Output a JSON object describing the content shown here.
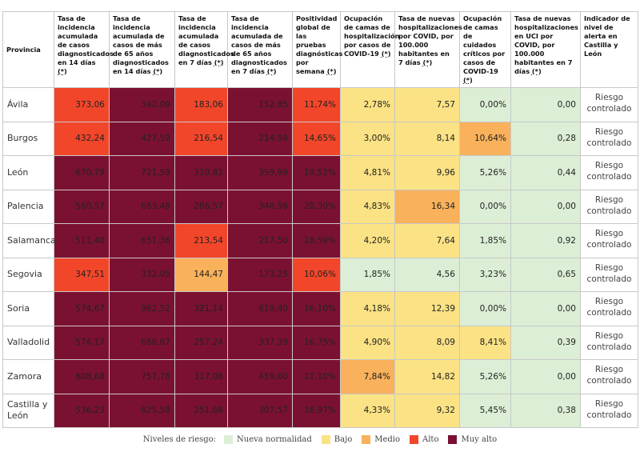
{
  "headers": [
    {
      "text": "Provincia",
      "asterisk": ""
    },
    {
      "text": "Tasa de incidencia acumulada de casos diagnosticados en 14 días ",
      "asterisk": "(*)"
    },
    {
      "text": "Tasa de incidencia acumulada de casos de más de 65 años diagnosticados en 14 días ",
      "asterisk": "(*)"
    },
    {
      "text": "Tasa de incidencia acumulada de casos diagnosticados en 7 días ",
      "asterisk": "(*)"
    },
    {
      "text": "Tasa de incidencia acumulada de casos de más de 65 años diagnosticados en 7 días ",
      "asterisk": "(*)"
    },
    {
      "text": "Positividad global de las pruebas diagnósticas por semana ",
      "asterisk": "(*)"
    },
    {
      "text": "Ocupación de camas de hospitalización por casos de COVID-19 ",
      "asterisk": "(*)"
    },
    {
      "text": "Tasa de nuevas hospitalizaciones por COVID, por 100.000 habitantes en 7 días ",
      "asterisk": "(*)"
    },
    {
      "text": "Ocupación de camas de cuidados críticos por casos de COVID-19 ",
      "asterisk": "(*)"
    },
    {
      "text": "Tasa de nuevas hospitalizaciones en UCI por COVID, por 100.000 habitantes en 7 días ",
      "asterisk": "(*)"
    },
    {
      "text": "Indicador de nivel de alerta en Castilla y León",
      "asterisk": ""
    }
  ],
  "rows": [
    {
      "provincia": "Ávila",
      "alerta": "Riesgo controlado",
      "cells": [
        {
          "v": "373,06",
          "lvl": "alto"
        },
        {
          "v": "342,09",
          "lvl": "muy"
        },
        {
          "v": "183,06",
          "lvl": "alto"
        },
        {
          "v": "152,85",
          "lvl": "muy"
        },
        {
          "v": "11,74%",
          "lvl": "alto"
        },
        {
          "v": "2,78%",
          "lvl": "bajo"
        },
        {
          "v": "7,57",
          "lvl": "bajo"
        },
        {
          "v": "0,00%",
          "lvl": "nueva"
        },
        {
          "v": "0,00",
          "lvl": "nueva"
        }
      ]
    },
    {
      "provincia": "Burgos",
      "alerta": "Riesgo controlado",
      "cells": [
        {
          "v": "432,24",
          "lvl": "alto"
        },
        {
          "v": "427,59",
          "lvl": "muy"
        },
        {
          "v": "216,54",
          "lvl": "alto"
        },
        {
          "v": "214,96",
          "lvl": "muy"
        },
        {
          "v": "14,65%",
          "lvl": "alto"
        },
        {
          "v": "3,00%",
          "lvl": "bajo"
        },
        {
          "v": "8,14",
          "lvl": "bajo"
        },
        {
          "v": "10,64%",
          "lvl": "medio"
        },
        {
          "v": "0,28",
          "lvl": "nueva"
        }
      ]
    },
    {
      "provincia": "León",
      "alerta": "Riesgo controlado",
      "cells": [
        {
          "v": "670,79",
          "lvl": "muy"
        },
        {
          "v": "721,59",
          "lvl": "muy"
        },
        {
          "v": "310,82",
          "lvl": "muy"
        },
        {
          "v": "359,99",
          "lvl": "muy"
        },
        {
          "v": "19,52%",
          "lvl": "muy"
        },
        {
          "v": "4,81%",
          "lvl": "bajo"
        },
        {
          "v": "9,96",
          "lvl": "bajo"
        },
        {
          "v": "5,26%",
          "lvl": "nueva"
        },
        {
          "v": "0,44",
          "lvl": "nueva"
        }
      ]
    },
    {
      "provincia": "Palencia",
      "alerta": "Riesgo controlado",
      "cells": [
        {
          "v": "560,57",
          "lvl": "muy"
        },
        {
          "v": "683,48",
          "lvl": "muy"
        },
        {
          "v": "286,57",
          "lvl": "muy"
        },
        {
          "v": "348,96",
          "lvl": "muy"
        },
        {
          "v": "20,30%",
          "lvl": "muy"
        },
        {
          "v": "4,83%",
          "lvl": "bajo"
        },
        {
          "v": "16,34",
          "lvl": "medio"
        },
        {
          "v": "0,00%",
          "lvl": "nueva"
        },
        {
          "v": "0,00",
          "lvl": "nueva"
        }
      ]
    },
    {
      "provincia": "Salamanca",
      "alerta": "Riesgo controlado",
      "cells": [
        {
          "v": "511,40",
          "lvl": "muy"
        },
        {
          "v": "651,36",
          "lvl": "muy"
        },
        {
          "v": "213,54",
          "lvl": "alto"
        },
        {
          "v": "217,50",
          "lvl": "muy"
        },
        {
          "v": "18,59%",
          "lvl": "muy"
        },
        {
          "v": "4,20%",
          "lvl": "bajo"
        },
        {
          "v": "7,64",
          "lvl": "bajo"
        },
        {
          "v": "1,85%",
          "lvl": "nueva"
        },
        {
          "v": "0,92",
          "lvl": "nueva"
        }
      ]
    },
    {
      "provincia": "Segovia",
      "alerta": "Riesgo controlado",
      "cells": [
        {
          "v": "347,51",
          "lvl": "alto"
        },
        {
          "v": "332,05",
          "lvl": "muy"
        },
        {
          "v": "144,47",
          "lvl": "medio"
        },
        {
          "v": "173,25",
          "lvl": "muy"
        },
        {
          "v": "10,06%",
          "lvl": "alto"
        },
        {
          "v": "1,85%",
          "lvl": "nueva"
        },
        {
          "v": "4,56",
          "lvl": "nueva"
        },
        {
          "v": "3,23%",
          "lvl": "nueva"
        },
        {
          "v": "0,65",
          "lvl": "nueva"
        }
      ]
    },
    {
      "provincia": "Soria",
      "alerta": "Riesgo controlado",
      "cells": [
        {
          "v": "574,67",
          "lvl": "muy"
        },
        {
          "v": "962,52",
          "lvl": "muy"
        },
        {
          "v": "321,14",
          "lvl": "muy"
        },
        {
          "v": "619,40",
          "lvl": "muy"
        },
        {
          "v": "16,10%",
          "lvl": "muy"
        },
        {
          "v": "4,18%",
          "lvl": "bajo"
        },
        {
          "v": "12,39",
          "lvl": "bajo"
        },
        {
          "v": "0,00%",
          "lvl": "nueva"
        },
        {
          "v": "0,00",
          "lvl": "nueva"
        }
      ]
    },
    {
      "provincia": "Valladolid",
      "alerta": "Riesgo controlado",
      "cells": [
        {
          "v": "574,17",
          "lvl": "muy"
        },
        {
          "v": "688,67",
          "lvl": "muy"
        },
        {
          "v": "257,24",
          "lvl": "muy"
        },
        {
          "v": "337,39",
          "lvl": "muy"
        },
        {
          "v": "16,75%",
          "lvl": "muy"
        },
        {
          "v": "4,90%",
          "lvl": "bajo"
        },
        {
          "v": "8,09",
          "lvl": "bajo"
        },
        {
          "v": "8,41%",
          "lvl": "bajo"
        },
        {
          "v": "0,39",
          "lvl": "nueva"
        }
      ]
    },
    {
      "provincia": "Zamora",
      "alerta": "Riesgo controlado",
      "cells": [
        {
          "v": "608,68",
          "lvl": "muy"
        },
        {
          "v": "757,78",
          "lvl": "muy"
        },
        {
          "v": "317,08",
          "lvl": "muy"
        },
        {
          "v": "459,60",
          "lvl": "muy"
        },
        {
          "v": "21,10%",
          "lvl": "muy"
        },
        {
          "v": "7,84%",
          "lvl": "medio"
        },
        {
          "v": "14,82",
          "lvl": "bajo"
        },
        {
          "v": "5,26%",
          "lvl": "nueva"
        },
        {
          "v": "0,00",
          "lvl": "nueva"
        }
      ]
    },
    {
      "provincia": "Castilla y León",
      "alerta": "Riesgo controlado",
      "cells": [
        {
          "v": "536,23",
          "lvl": "muy"
        },
        {
          "v": "625,58",
          "lvl": "muy"
        },
        {
          "v": "251,68",
          "lvl": "muy"
        },
        {
          "v": "307,57",
          "lvl": "muy"
        },
        {
          "v": "16,97%",
          "lvl": "muy"
        },
        {
          "v": "4,33%",
          "lvl": "bajo"
        },
        {
          "v": "9,32",
          "lvl": "bajo"
        },
        {
          "v": "5,45%",
          "lvl": "nueva"
        },
        {
          "v": "0,38",
          "lvl": "nueva"
        }
      ]
    }
  ],
  "legend": {
    "title": "Niveles de riesgo:",
    "items": [
      {
        "label": "Nueva normalidad",
        "lvl": "nueva",
        "color": "#dcefd6"
      },
      {
        "label": "Bajo",
        "lvl": "bajo",
        "color": "#fbe284"
      },
      {
        "label": "Medio",
        "lvl": "medio",
        "color": "#f9b15b"
      },
      {
        "label": "Alto",
        "lvl": "alto",
        "color": "#f2462a"
      },
      {
        "label": "Muy alto",
        "lvl": "muy",
        "color": "#7b1131"
      }
    ]
  }
}
